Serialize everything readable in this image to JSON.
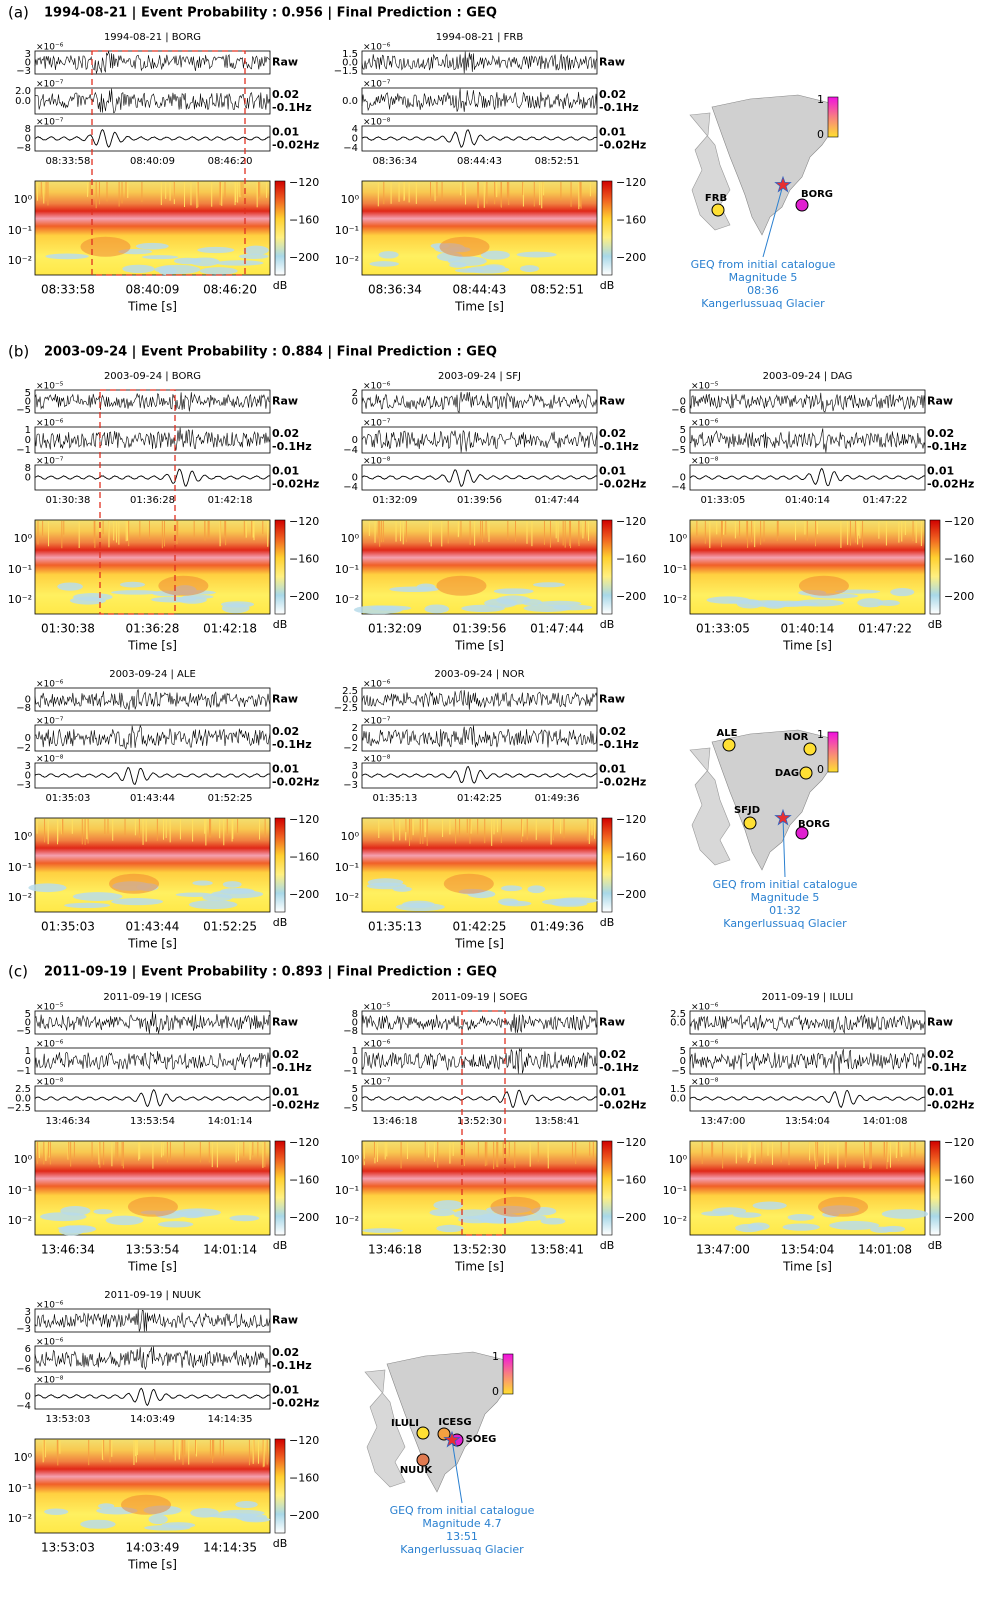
{
  "shared": {
    "bands": [
      [
        "Raw"
      ],
      [
        "0.02",
        "-0.1Hz"
      ],
      [
        "0.01",
        "-0.02Hz"
      ]
    ],
    "spec_yticks": [
      "10⁰",
      "10⁻¹",
      "10⁻²"
    ],
    "colorbar_ticks": [
      "−120",
      "−160",
      "−200"
    ],
    "colorbar_unit": "dB",
    "xlabel": "Time [s]",
    "map_colorbar_ticks": [
      "1",
      "0"
    ]
  },
  "panels": [
    {
      "label": "(a)",
      "title": "1994-08-21 | Event Probability : 0.956 | Final Prediction : GEQ",
      "stations": [
        {
          "title": "1994-08-21 | BORG",
          "traces": [
            {
              "exponent": "×10⁻⁶",
              "yticks": [
                "3",
                "0",
                "−3"
              ]
            },
            {
              "exponent": "×10⁻⁷",
              "yticks": [
                "2.0",
                "0.0"
              ]
            },
            {
              "exponent": "×10⁻⁷",
              "yticks": [
                "8",
                "0",
                "−8"
              ]
            }
          ],
          "times": [
            "08:33:58",
            "08:40:09",
            "08:46:20"
          ]
        },
        {
          "title": "1994-08-21 | FRB",
          "traces": [
            {
              "exponent": "×10⁻⁶",
              "yticks": [
                "1.5",
                "0.0",
                "−1.5"
              ]
            },
            {
              "exponent": "×10⁻⁷",
              "yticks": [
                "0.0"
              ]
            },
            {
              "exponent": "×10⁻⁸",
              "yticks": [
                "4",
                "0",
                "−4"
              ]
            }
          ],
          "times": [
            "08:36:34",
            "08:44:43",
            "08:52:51"
          ]
        }
      ],
      "map": {
        "stations": [
          {
            "name": "FRB",
            "color": "#ffe034"
          },
          {
            "name": "BORG",
            "color": "#e020d0"
          }
        ],
        "annotation": [
          "GEQ from initial catalogue",
          "Magnitude 5",
          "08:36",
          "Kangerlussuaq Glacier"
        ]
      }
    },
    {
      "label": "(b)",
      "title": "2003-09-24 | Event Probability : 0.884 | Final Prediction : GEQ",
      "stations": [
        {
          "title": "2003-09-24 | BORG",
          "traces": [
            {
              "exponent": "×10⁻⁵",
              "yticks": [
                "5",
                "0",
                "−5"
              ]
            },
            {
              "exponent": "×10⁻⁶",
              "yticks": [
                "1",
                "0",
                "−1"
              ]
            },
            {
              "exponent": "×10⁻⁷",
              "yticks": [
                "8",
                "0"
              ]
            }
          ],
          "times": [
            "01:30:38",
            "01:36:28",
            "01:42:18"
          ]
        },
        {
          "title": "2003-09-24 | SFJ",
          "traces": [
            {
              "exponent": "×10⁻⁶",
              "yticks": [
                "2",
                "0"
              ]
            },
            {
              "exponent": "×10⁻⁷",
              "yticks": [
                "0",
                "−4"
              ]
            },
            {
              "exponent": "×10⁻⁸",
              "yticks": [
                "0",
                "−4"
              ]
            }
          ],
          "times": [
            "01:32:09",
            "01:39:56",
            "01:47:44"
          ]
        },
        {
          "title": "2003-09-24 | DAG",
          "traces": [
            {
              "exponent": "×10⁻⁵",
              "yticks": [
                "0",
                "−6"
              ]
            },
            {
              "exponent": "×10⁻⁶",
              "yticks": [
                "5",
                "0",
                "−5"
              ]
            },
            {
              "exponent": "×10⁻⁸",
              "yticks": [
                "0",
                "−4"
              ]
            }
          ],
          "times": [
            "01:33:05",
            "01:40:14",
            "01:47:22"
          ]
        },
        {
          "title": "2003-09-24 | ALE",
          "traces": [
            {
              "exponent": "×10⁻⁶",
              "yticks": [
                "0",
                "−8"
              ]
            },
            {
              "exponent": "×10⁻⁷",
              "yticks": [
                "0",
                "−2"
              ]
            },
            {
              "exponent": "×10⁻⁸",
              "yticks": [
                "3",
                "0",
                "−3"
              ]
            }
          ],
          "times": [
            "01:35:03",
            "01:43:44",
            "01:52:25"
          ]
        },
        {
          "title": "2003-09-24 | NOR",
          "traces": [
            {
              "exponent": "×10⁻⁶",
              "yticks": [
                "2.5",
                "0.0",
                "−2.5"
              ]
            },
            {
              "exponent": "×10⁻⁷",
              "yticks": [
                "2",
                "0",
                "−2"
              ]
            },
            {
              "exponent": "×10⁻⁸",
              "yticks": [
                "3",
                "0",
                "−3"
              ]
            }
          ],
          "times": [
            "01:35:13",
            "01:42:25",
            "01:49:36"
          ]
        }
      ],
      "map": {
        "stations": [
          {
            "name": "ALE",
            "color": "#ffe034"
          },
          {
            "name": "NOR",
            "color": "#ffe034"
          },
          {
            "name": "DAG",
            "color": "#ffe034"
          },
          {
            "name": "SFJD",
            "color": "#ffe034"
          },
          {
            "name": "BORG",
            "color": "#e020d0"
          }
        ],
        "annotation": [
          "GEQ from initial catalogue",
          "Magnitude 5",
          "01:32",
          "Kangerlussuaq Glacier"
        ]
      }
    },
    {
      "label": "(c)",
      "title": "2011-09-19 | Event Probability : 0.893 | Final Prediction : GEQ",
      "stations": [
        {
          "title": "2011-09-19 | ICESG",
          "traces": [
            {
              "exponent": "×10⁻⁵",
              "yticks": [
                "5",
                "0",
                "−5"
              ]
            },
            {
              "exponent": "×10⁻⁶",
              "yticks": [
                "1",
                "0",
                "−1"
              ]
            },
            {
              "exponent": "×10⁻⁸",
              "yticks": [
                "2.5",
                "0.0",
                "−2.5"
              ]
            }
          ],
          "times": [
            "13:46:34",
            "13:53:54",
            "14:01:14"
          ]
        },
        {
          "title": "2011-09-19 | SOEG",
          "traces": [
            {
              "exponent": "×10⁻⁵",
              "yticks": [
                "8",
                "0",
                "−8"
              ]
            },
            {
              "exponent": "×10⁻⁶",
              "yticks": [
                "1",
                "0",
                "−1"
              ]
            },
            {
              "exponent": "×10⁻⁷",
              "yticks": [
                "5",
                "0",
                "−5"
              ]
            }
          ],
          "times": [
            "13:46:18",
            "13:52:30",
            "13:58:41"
          ]
        },
        {
          "title": "2011-09-19 | ILULI",
          "traces": [
            {
              "exponent": "×10⁻⁶",
              "yticks": [
                "2.5",
                "0.0"
              ]
            },
            {
              "exponent": "×10⁻⁶",
              "yticks": [
                "5",
                "0",
                "−5"
              ]
            },
            {
              "exponent": "×10⁻⁸",
              "yticks": [
                "1.5",
                "0.0"
              ]
            }
          ],
          "times": [
            "13:47:00",
            "13:54:04",
            "14:01:08"
          ]
        },
        {
          "title": "2011-09-19 | NUUK",
          "traces": [
            {
              "exponent": "×10⁻⁶",
              "yticks": [
                "3",
                "0",
                "−3"
              ]
            },
            {
              "exponent": "×10⁻⁶",
              "yticks": [
                "6",
                "0",
                "−6"
              ]
            },
            {
              "exponent": "×10⁻⁸",
              "yticks": [
                "0",
                "−4"
              ]
            }
          ],
          "times": [
            "13:53:03",
            "14:03:49",
            "14:14:35"
          ]
        }
      ],
      "map": {
        "stations": [
          {
            "name": "ILULI",
            "color": "#ffe034"
          },
          {
            "name": "ICESG",
            "color": "#f4a040"
          },
          {
            "name": "SOEG",
            "color": "#e020d0"
          },
          {
            "name": "NUUK",
            "color": "#e07a50"
          }
        ],
        "annotation": [
          "GEQ from initial catalogue",
          "Magnitude 4.7",
          "13:51",
          "Kangerlussuaq Glacier"
        ]
      }
    }
  ]
}
